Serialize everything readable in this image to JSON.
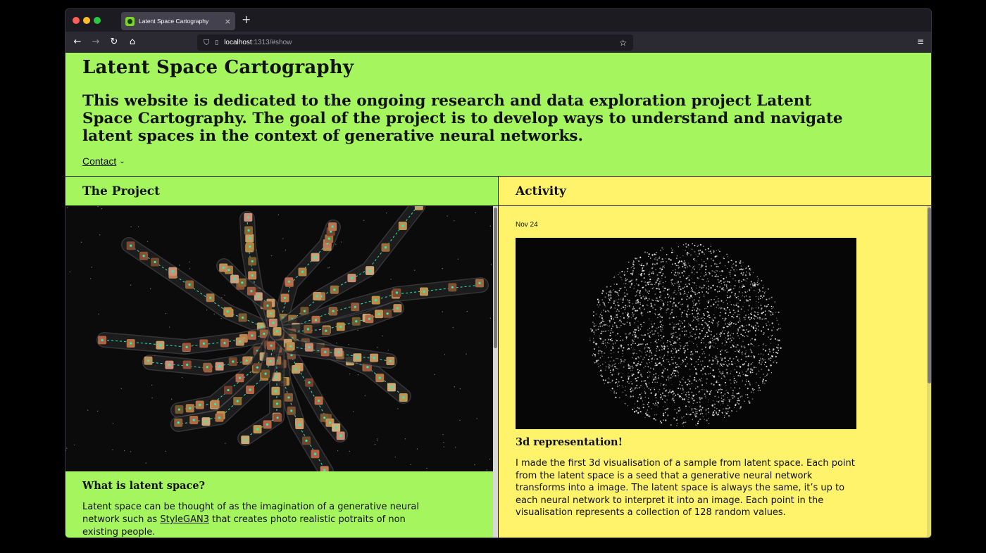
{
  "browser": {
    "tab_title": "Latent Space Cartography",
    "tab_close": "×",
    "new_tab": "+",
    "url_host": "localhost",
    "url_path": ":1313/#show"
  },
  "header": {
    "title": "Latent Space Cartography",
    "intro": "This website is dedicated to the ongoing research and data exploration project Latent Space Cartography. The goal of the project is to develop ways to understand and navigate latent spaces in the context of generative neural networks.",
    "contact_label": "Contact"
  },
  "project": {
    "heading": "The Project",
    "question_title": "What is latent space?",
    "body_before": "Latent space can be thought of as the imagination of a generative neural network such as ",
    "body_link": "StyleGAN3",
    "body_after": " that creates photo realistic potraits of non existing people."
  },
  "activity": {
    "heading": "Activity",
    "date": "Nov 24",
    "post_title": "3d representation!",
    "post_body": "I made the first 3d visualisation of a sample from latent space. Each point from the latent space is a seed that a generative neural network transforms into a image. The latent space is always the same, it’s up to each neural network to interpret it into an image. Each point in the visualisation represents a collection of 128 random values."
  },
  "colors": {
    "left_bg": "#a5f55e",
    "right_bg": "#fef36b",
    "viz_bg": "#0b0b0c",
    "path_accent": "#2ee8c0"
  },
  "icons": {
    "back": "arrow-left-icon",
    "forward": "arrow-right-icon",
    "reload": "reload-icon",
    "home": "home-icon",
    "shield": "shield-icon",
    "page": "page-icon",
    "star": "star-icon",
    "menu": "hamburger-menu-icon",
    "chevron": "chevron-down-icon"
  }
}
